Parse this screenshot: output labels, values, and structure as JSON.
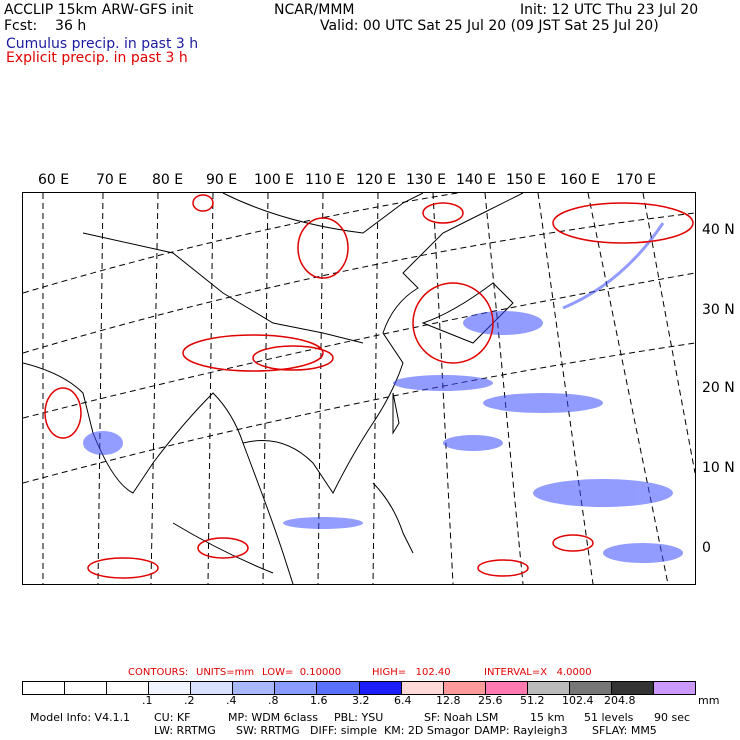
{
  "header": {
    "left": [
      "ACCLIP 15km ARW-GFS init",
      "Fcst:    36 h"
    ],
    "center": "NCAR/MMM",
    "right_init": "Init: 12 UTC Thu 23 Jul 20",
    "right_valid": "Valid: 00 UTC Sat 25 Jul 20 (09 JST Sat 25 Jul 20)",
    "cumulus": "Cumulus precip. in past 3 h",
    "explicit": "Explicit precip. in past 3 h"
  },
  "longitudes": [
    "60 E",
    "70 E",
    "80 E",
    "90 E",
    "100 E",
    "110 E",
    "120 E",
    "130 E",
    "140 E",
    "150 E",
    "160 E",
    "170 E"
  ],
  "latitudes": [
    "40 N",
    "30 N",
    "20 N",
    "10 N",
    "0"
  ],
  "contours": {
    "label": "CONTOURS:",
    "units": "UNITS=mm",
    "low": "LOW=  0.10000",
    "high": "HIGH=   102.40",
    "interval": "INTERVAL=X   4.0000"
  },
  "legend": {
    "colors": [
      "#ffffff",
      "#ffffff",
      "#ffffff",
      "#f0f4ff",
      "#d8e2ff",
      "#aab8ff",
      "#8a9cff",
      "#5a70ff",
      "#1d1dff",
      "#ffd8d8",
      "#ff9a9a",
      "#ff7ab0",
      "#bbbbbb",
      "#777777",
      "#333333",
      "#cc99ff"
    ],
    "labels": [
      ".1",
      ".2",
      ".4",
      ".8",
      "1.6",
      "3.2",
      "6.4",
      "12.8",
      "25.6",
      "51.2",
      "102.4",
      "204.8"
    ],
    "unit": "mm"
  },
  "footer": {
    "line1": [
      "Model Info: V4.1.1",
      "CU: KF",
      "MP: WDM 6class",
      "PBL: YSU",
      "SF: Noah LSM",
      "15 km",
      "51 levels",
      "90 sec"
    ],
    "line2": [
      "LW: RRTMG",
      "SW: RRTMG",
      "DIFF: simple",
      "KM: 2D Smagor",
      "DAMP: Rayleigh3",
      "SFLAY: MM5"
    ]
  }
}
